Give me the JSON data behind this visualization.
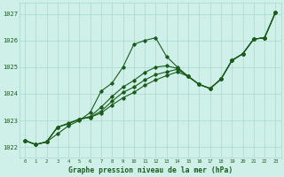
{
  "title": "Graphe pression niveau de la mer (hPa)",
  "bg_color": "#cff0e8",
  "line_color": "#1a5c1a",
  "grid_color": "#a8d8d0",
  "x_min": -0.5,
  "x_max": 23.5,
  "y_min": 1021.6,
  "y_max": 1027.4,
  "yticks": [
    1022,
    1023,
    1024,
    1025,
    1026,
    1027
  ],
  "xticks": [
    0,
    1,
    2,
    3,
    4,
    5,
    6,
    7,
    8,
    9,
    10,
    11,
    12,
    13,
    14,
    15,
    16,
    17,
    18,
    19,
    20,
    21,
    22,
    23
  ],
  "series": [
    [
      1022.25,
      1022.1,
      1022.2,
      1022.5,
      1022.8,
      1023.0,
      1023.3,
      1024.1,
      1024.4,
      1025.0,
      1025.85,
      1026.0,
      1026.1,
      1025.4,
      1025.0,
      1024.65,
      1024.35,
      1024.2,
      1024.55,
      1025.25,
      1025.5,
      1026.05,
      1026.1,
      1027.05
    ],
    [
      1022.25,
      1022.1,
      1022.2,
      1022.75,
      1022.9,
      1023.05,
      1023.15,
      1023.5,
      1023.9,
      1024.25,
      1024.5,
      1024.8,
      1025.0,
      1025.05,
      1024.95,
      1024.65,
      1024.35,
      1024.2,
      1024.55,
      1025.25,
      1025.5,
      1026.05,
      1026.1,
      1027.05
    ],
    [
      1022.25,
      1022.1,
      1022.2,
      1022.75,
      1022.88,
      1023.05,
      1023.12,
      1023.35,
      1023.72,
      1024.05,
      1024.25,
      1024.52,
      1024.72,
      1024.82,
      1024.92,
      1024.65,
      1024.35,
      1024.2,
      1024.55,
      1025.25,
      1025.5,
      1026.05,
      1026.1,
      1027.05
    ],
    [
      1022.25,
      1022.1,
      1022.2,
      1022.75,
      1022.88,
      1023.05,
      1023.12,
      1023.28,
      1023.58,
      1023.85,
      1024.05,
      1024.32,
      1024.52,
      1024.68,
      1024.82,
      1024.65,
      1024.35,
      1024.2,
      1024.55,
      1025.25,
      1025.5,
      1026.05,
      1026.1,
      1027.05
    ]
  ]
}
